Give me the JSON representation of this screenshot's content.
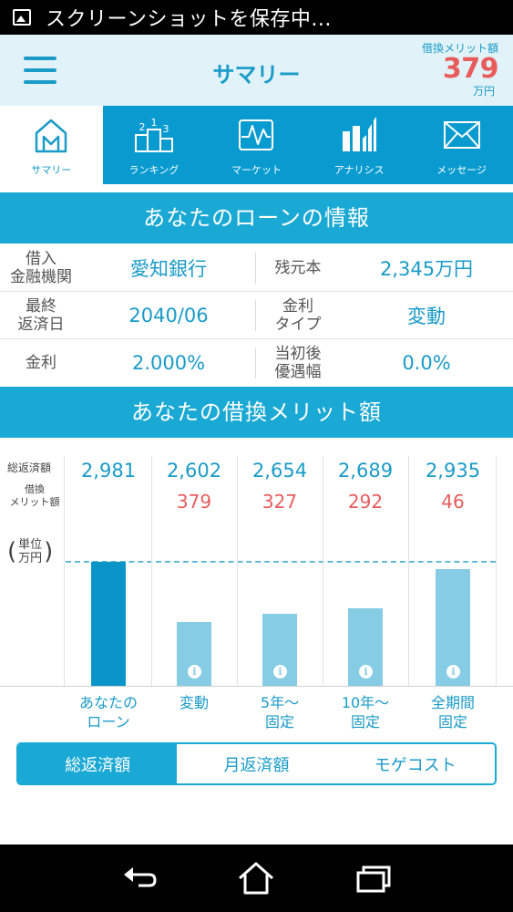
{
  "status_bar": {
    "text": "スクリーンショットを保存中..."
  },
  "header": {
    "title": "サマリー",
    "merit_label": "借換メリット額",
    "merit_value": "379",
    "merit_unit": "万円"
  },
  "tabs": [
    {
      "label": "サマリー",
      "icon": "home-icon",
      "active": true
    },
    {
      "label": "ランキング",
      "icon": "podium-icon",
      "active": false
    },
    {
      "label": "マーケット",
      "icon": "chart-line-icon",
      "active": false
    },
    {
      "label": "アナリシス",
      "icon": "bar-analysis-icon",
      "active": false
    },
    {
      "label": "メッセージ",
      "icon": "envelope-icon",
      "active": false
    }
  ],
  "loan_info": {
    "heading": "あなたのローンの情報",
    "rows": [
      {
        "label1": "借入\n金融機関",
        "value1": "愛知銀行",
        "label2": "残元本",
        "value2": "2,345万円"
      },
      {
        "label1": "最終\n返済日",
        "value1": "2040/06",
        "label2": "金利\nタイプ",
        "value2": "変動"
      },
      {
        "label1": "金利",
        "value1": "2.000%",
        "label2": "当初後\n優遇幅",
        "value2": "0.0%"
      }
    ]
  },
  "merit_section": {
    "heading": "あなたの借換メリット額",
    "legend_total": "総返済額",
    "legend_merit": "借換\nメリット額",
    "legend_unit": "単位\n万円"
  },
  "chart_data": {
    "type": "bar",
    "categories": [
      "あなたの\nローン",
      "変動",
      "5年～\n固定",
      "10年～\n固定",
      "全期間\n固定"
    ],
    "series": [
      {
        "name": "総返済額",
        "values": [
          2981,
          2602,
          2654,
          2689,
          2935
        ]
      }
    ],
    "merit_values": [
      "",
      "379",
      "327",
      "292",
      "46"
    ],
    "total_labels": [
      "2,981",
      "2,602",
      "2,654",
      "2,689",
      "2,935"
    ],
    "reference_value": 2981,
    "colors": {
      "current": "#0a95c9",
      "alternative": "#85cce4"
    }
  },
  "segmented": [
    {
      "label": "総返済額",
      "active": true
    },
    {
      "label": "月返済額",
      "active": false
    },
    {
      "label": "モゲコスト",
      "active": false
    }
  ]
}
